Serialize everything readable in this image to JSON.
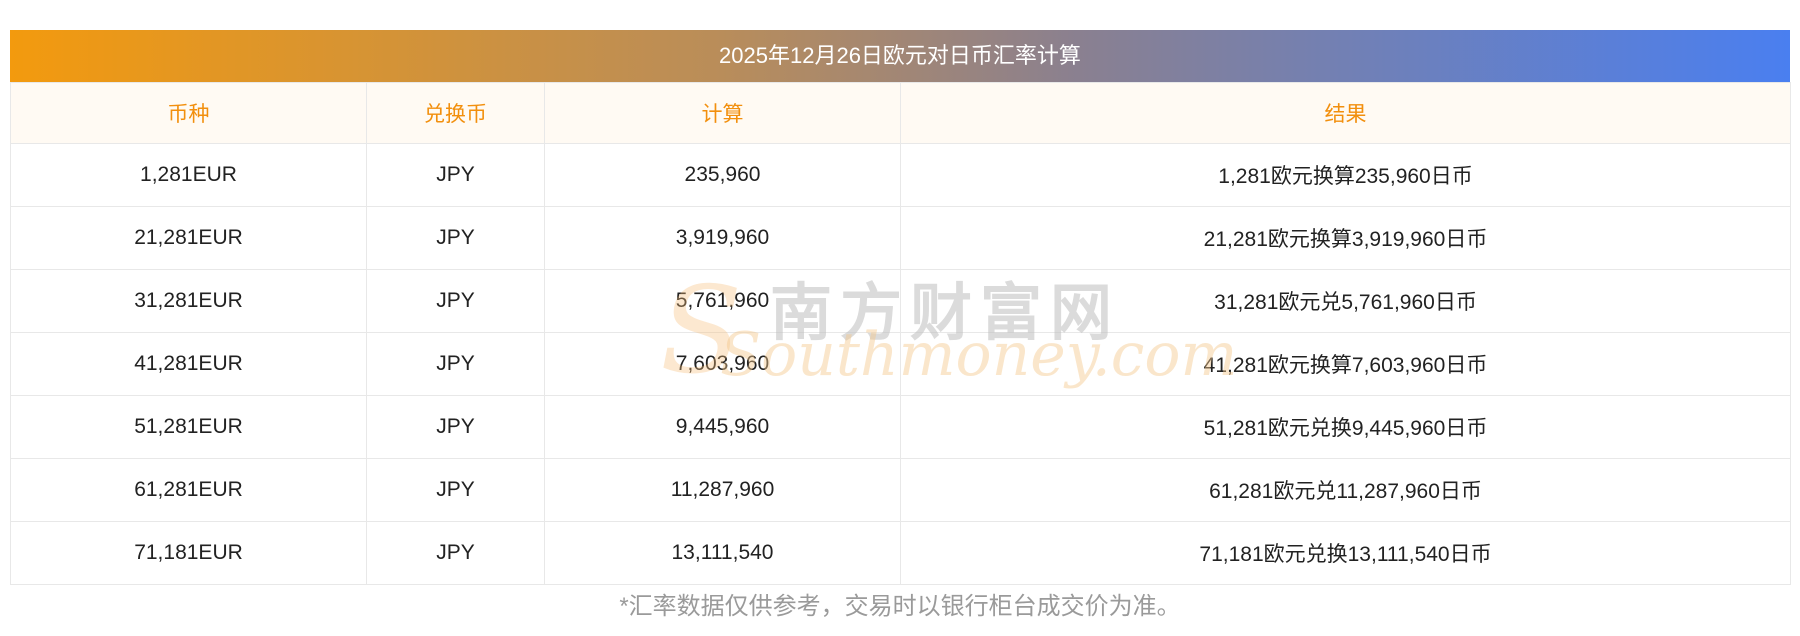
{
  "title": "2025年12月26日欧元对日币汇率计算",
  "headers": [
    "币种",
    "兑换币",
    "计算",
    "结果"
  ],
  "rows": [
    [
      "1,281EUR",
      "JPY",
      "235,960",
      "1,281欧元换算235,960日币"
    ],
    [
      "21,281EUR",
      "JPY",
      "3,919,960",
      "21,281欧元换算3,919,960日币"
    ],
    [
      "31,281EUR",
      "JPY",
      "5,761,960",
      "31,281欧元兑5,761,960日币"
    ],
    [
      "41,281EUR",
      "JPY",
      "7,603,960",
      "41,281欧元换算7,603,960日币"
    ],
    [
      "51,281EUR",
      "JPY",
      "9,445,960",
      "51,281欧元兑换9,445,960日币"
    ],
    [
      "61,281EUR",
      "JPY",
      "11,287,960",
      "61,281欧元兑11,287,960日币"
    ],
    [
      "71,181EUR",
      "JPY",
      "13,111,540",
      "71,181欧元兑换13,111,540日币"
    ]
  ],
  "note": "*汇率数据仅供参考，交易时以银行柜台成交价为准。",
  "watermark": {
    "cn": "南方财富网",
    "en": "Southmoney.com"
  },
  "colors": {
    "header_text": "#f28f0d",
    "gradient_start": "#f39a0e",
    "gradient_end": "#4a7ff0"
  }
}
